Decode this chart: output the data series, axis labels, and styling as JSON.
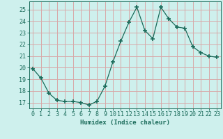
{
  "x": [
    0,
    1,
    2,
    3,
    4,
    5,
    6,
    7,
    8,
    9,
    10,
    11,
    12,
    13,
    14,
    15,
    16,
    17,
    18,
    19,
    20,
    21,
    22,
    23
  ],
  "y": [
    19.9,
    19.1,
    17.8,
    17.2,
    17.1,
    17.1,
    17.0,
    16.8,
    17.1,
    18.4,
    20.5,
    22.3,
    23.9,
    25.2,
    23.2,
    22.5,
    25.2,
    24.2,
    23.5,
    23.4,
    21.8,
    21.3,
    21.0,
    20.9
  ],
  "bg_color": "#cef0ed",
  "line_color": "#1a6b5a",
  "grid_color": "#d8a8a8",
  "xlabel": "Humidex (Indice chaleur)",
  "ylim": [
    16.5,
    25.7
  ],
  "xlim": [
    -0.5,
    23.5
  ],
  "yticks": [
    17,
    18,
    19,
    20,
    21,
    22,
    23,
    24,
    25
  ],
  "xticks": [
    0,
    1,
    2,
    3,
    4,
    5,
    6,
    7,
    8,
    9,
    10,
    11,
    12,
    13,
    14,
    15,
    16,
    17,
    18,
    19,
    20,
    21,
    22,
    23
  ]
}
